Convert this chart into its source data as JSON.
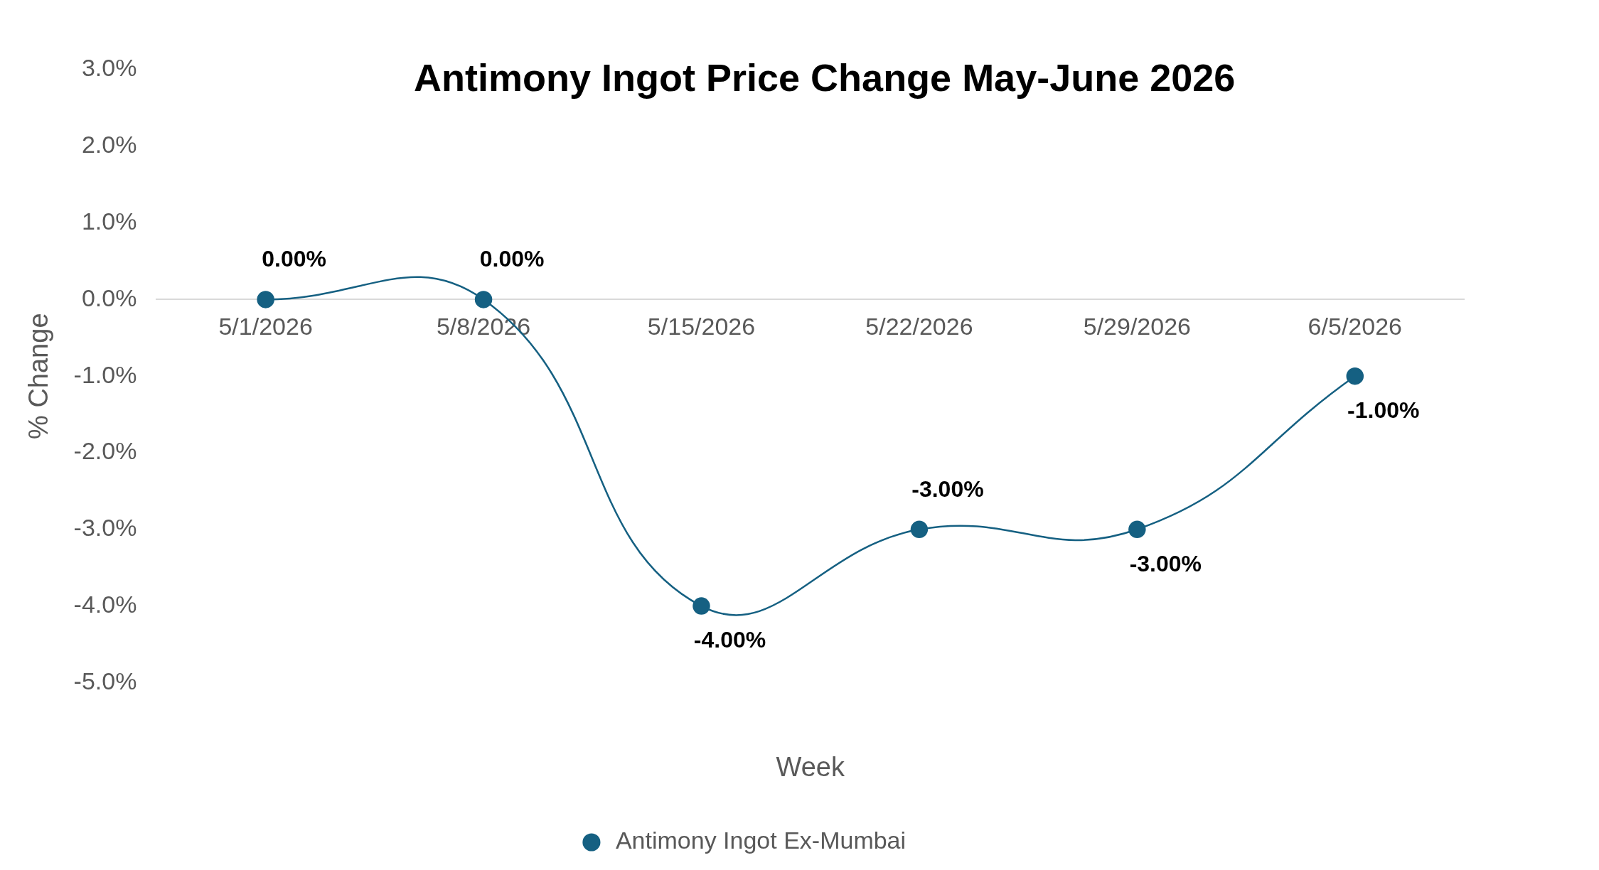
{
  "chart_data": {
    "type": "line",
    "title": "Antimony Ingot Price Change May-June 2026",
    "xlabel": "Week",
    "ylabel": "% Change",
    "categories": [
      "5/1/2026",
      "5/8/2026",
      "5/15/2026",
      "5/22/2026",
      "5/29/2026",
      "6/5/2026"
    ],
    "series": [
      {
        "name": "Antimony Ingot Ex-Mumbai",
        "color": "#156082",
        "values": [
          0,
          0,
          -4,
          -3,
          -3,
          -1
        ],
        "value_labels": [
          "0.00%",
          "0.00%",
          "-4.00%",
          "-3.00%",
          "-3.00%",
          "-1.00%"
        ]
      }
    ],
    "ylim": [
      -5,
      3
    ],
    "yticks": [
      {
        "value": -5,
        "label": "-5.0%"
      },
      {
        "value": -4,
        "label": "-4.0%"
      },
      {
        "value": -3,
        "label": "-3.0%"
      },
      {
        "value": -2,
        "label": "-2.0%"
      },
      {
        "value": -1,
        "label": "-1.0%"
      },
      {
        "value": 0,
        "label": "0.0%"
      },
      {
        "value": 1,
        "label": "1.0%"
      },
      {
        "value": 2,
        "label": "2.0%"
      },
      {
        "value": 3,
        "label": "3.0%"
      }
    ],
    "grid": false,
    "legend": "bottom",
    "marker": "circle",
    "line_style": "solid"
  }
}
